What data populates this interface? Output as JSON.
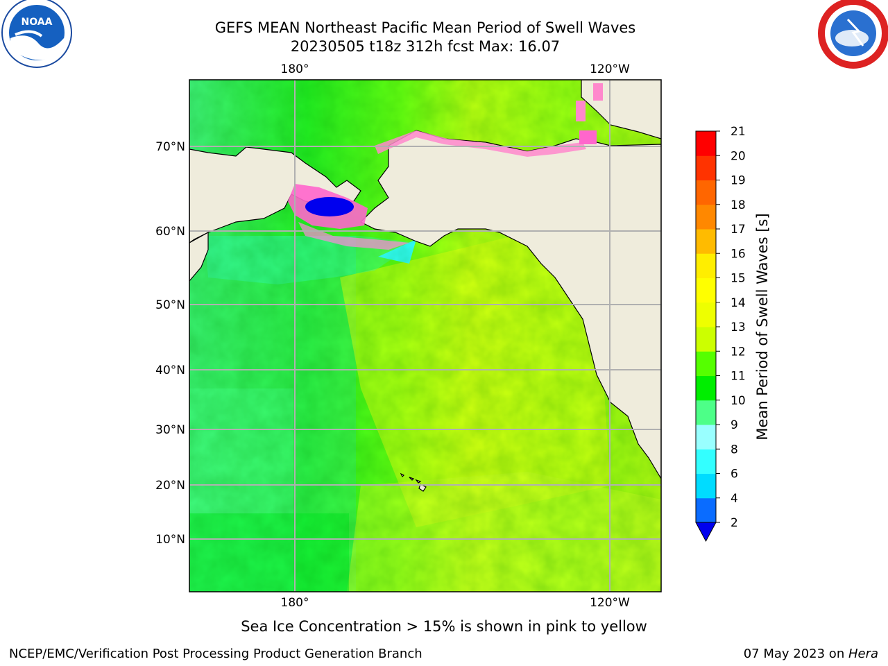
{
  "title_line1": "GEFS MEAN Northeast Pacific Mean Period of Swell Waves",
  "title_line2": "20230505 t18z 312h fcst   Max: 16.07",
  "logos": {
    "left": "noaa-logo",
    "right": "nws-logo"
  },
  "map": {
    "projection": "Mercator",
    "lon_grid": [
      {
        "lon": 180,
        "label": "180°"
      },
      {
        "lon": -120,
        "label": "120°W"
      }
    ],
    "lat_grid": [
      {
        "lat": 70,
        "label": "70°N"
      },
      {
        "lat": 60,
        "label": "60°N"
      },
      {
        "lat": 50,
        "label": "50°N"
      },
      {
        "lat": 40,
        "label": "40°N"
      },
      {
        "lat": 30,
        "label": "30°N"
      },
      {
        "lat": 20,
        "label": "20°N"
      },
      {
        "lat": 10,
        "label": "10°N"
      }
    ],
    "colors": {
      "land": "#efecdc",
      "coast": "#000000",
      "grid": "#b0b0b0",
      "ice": "#ff66cc"
    }
  },
  "colorbar": {
    "label": "Mean Period of Swell Waves [s]",
    "extend": "min",
    "levels": [
      {
        "value": "2",
        "color": "#0a6cff"
      },
      {
        "value": "4",
        "color": "#00dcff"
      },
      {
        "value": "6",
        "color": "#33ffff"
      },
      {
        "value": "8",
        "color": "#99ffff"
      },
      {
        "value": "9",
        "color": "#4dff88"
      },
      {
        "value": "10",
        "color": "#00ee00"
      },
      {
        "value": "11",
        "color": "#55ff00"
      },
      {
        "value": "12",
        "color": "#ccff00"
      },
      {
        "value": "13",
        "color": "#eeff00"
      },
      {
        "value": "14",
        "color": "#ffff00"
      },
      {
        "value": "15",
        "color": "#ffee00"
      },
      {
        "value": "16",
        "color": "#ffbb00"
      },
      {
        "value": "17",
        "color": "#ff8800"
      },
      {
        "value": "18",
        "color": "#ff6600"
      },
      {
        "value": "19",
        "color": "#ff3300"
      },
      {
        "value": "20",
        "color": "#ff0000"
      },
      {
        "value": "21",
        "color": ""
      }
    ],
    "underflow_color": "#0000ee"
  },
  "caption": "Sea Ice Concentration > 15% is shown in pink to yellow",
  "footer_left": "NCEP/EMC/Verification Post Processing Product Generation Branch",
  "footer_right_date": "07 May 2023 on ",
  "footer_right_host": "Hera"
}
